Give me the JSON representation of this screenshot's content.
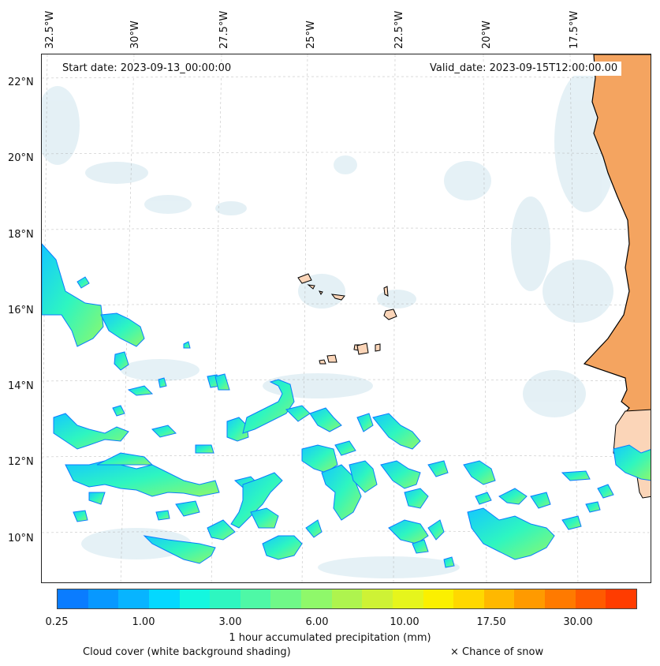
{
  "map": {
    "start_date": "Start date: 2023-09-13_00:00:00",
    "valid_date": "Valid_date: 2023-09-15T12:00:00.00",
    "longitude_labels": [
      "32.5°W",
      "30°W",
      "27.5°W",
      "25°W",
      "22.5°W",
      "20°W",
      "17.5°W"
    ],
    "latitude_labels": [
      "22°N",
      "20°N",
      "18°N",
      "16°N",
      "14°N",
      "12°N",
      "10°N"
    ],
    "colors": {
      "land": "#f4a460",
      "island": "#fbd5b8",
      "cloud": "#cfe5ee",
      "coastline": "#000000"
    }
  },
  "colorbar": {
    "label": "1 hour accumulated precipitation (mm)",
    "ticks": [
      "0.25",
      "1.00",
      "3.00",
      "6.00",
      "10.00",
      "17.50",
      "30.00"
    ],
    "colors": [
      "#0a7cff",
      "#0898ff",
      "#08b4ff",
      "#04d8ff",
      "#14f7df",
      "#2ef6c0",
      "#4ef8a6",
      "#6ff888",
      "#8ff86a",
      "#aef44e",
      "#cef235",
      "#e6f51c",
      "#fbf000",
      "#ffd800",
      "#ffb800",
      "#ff9a00",
      "#ff7a00",
      "#ff5a00",
      "#ff3c00"
    ]
  },
  "legend": {
    "cloud_cover": "Cloud cover (white background shading)",
    "snow": "× Chance of snow"
  }
}
